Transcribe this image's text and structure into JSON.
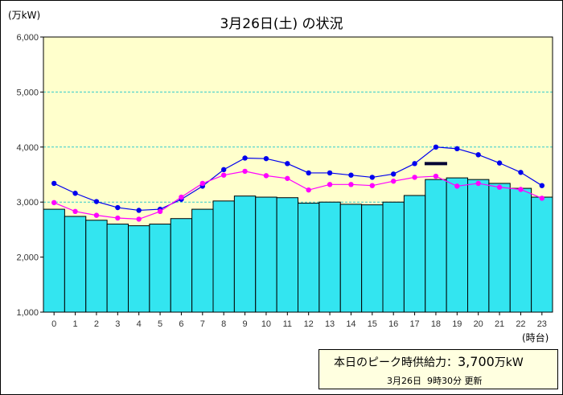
{
  "title": "3月26日(土) の状況",
  "y_unit_label": "(万kW)",
  "x_unit_label": "(時台)",
  "peak_supply": {
    "label": "本日のピーク時供給力：",
    "value": "3,700",
    "unit": "万kW"
  },
  "update_info": {
    "date": "3月26日",
    "time": "9時30分",
    "label": "更新"
  },
  "colors": {
    "plot_bg": "#ffffcc",
    "bar_fill": "#33e5f0",
    "bar_stroke": "#000000",
    "forecast_line": "#0000ee",
    "prev_line": "#ff00ff",
    "peak_marker": "#000033",
    "grid": "#33cccc"
  },
  "chart_data": {
    "type": "bar",
    "title": "3月26日(土) の状況",
    "xlabel": "(時台)",
    "ylabel": "(万kW)",
    "ylim": [
      1000,
      6000
    ],
    "y_ticks": [
      "1,000",
      "2,000",
      "3,000",
      "4,000",
      "5,000",
      "6,000"
    ],
    "y_tick_values": [
      1000,
      2000,
      3000,
      4000,
      5000,
      6000
    ],
    "grid": true,
    "categories": [
      "0",
      "1",
      "2",
      "3",
      "4",
      "5",
      "6",
      "7",
      "8",
      "9",
      "10",
      "11",
      "12",
      "13",
      "14",
      "15",
      "16",
      "17",
      "18",
      "19",
      "20",
      "21",
      "22",
      "23"
    ],
    "series": [
      {
        "type": "bar",
        "values": [
          2870,
          2740,
          2670,
          2600,
          2570,
          2600,
          2700,
          2870,
          3020,
          3110,
          3090,
          3080,
          2980,
          3000,
          2960,
          2950,
          3000,
          3120,
          3410,
          3440,
          3410,
          3340,
          3250,
          3090
        ]
      },
      {
        "type": "line",
        "values": [
          3340,
          3160,
          3010,
          2900,
          2850,
          2870,
          3050,
          3290,
          3590,
          3800,
          3790,
          3700,
          3530,
          3530,
          3490,
          3450,
          3510,
          3700,
          4000,
          3970,
          3860,
          3710,
          3540,
          3300
        ]
      },
      {
        "type": "line",
        "values": [
          2990,
          2830,
          2760,
          2710,
          2690,
          2830,
          3090,
          3340,
          3490,
          3560,
          3480,
          3430,
          3220,
          3320,
          3320,
          3300,
          3380,
          3450,
          3470,
          3290,
          3340,
          3270,
          3230,
          3070
        ]
      }
    ],
    "peak_supply_marker": {
      "hour": 18,
      "value": 3700
    }
  }
}
